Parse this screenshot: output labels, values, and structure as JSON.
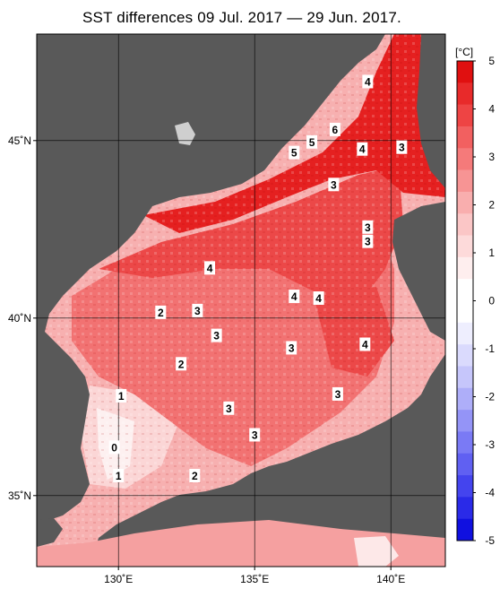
{
  "title": "SST differences 09 Jul. 2017 — 29 Jun. 2017.",
  "map": {
    "lon_range": [
      127,
      142
    ],
    "lat_range": [
      33,
      48
    ],
    "lon_ticks": [
      {
        "v": 130,
        "label": "130˚E"
      },
      {
        "v": 135,
        "label": "135˚E"
      },
      {
        "v": 140,
        "label": "140˚E"
      }
    ],
    "lat_ticks": [
      {
        "v": 45,
        "label": "45˚N"
      },
      {
        "v": 40,
        "label": "40˚N"
      },
      {
        "v": 35,
        "label": "35˚N"
      }
    ],
    "land_color": "#595959",
    "colors": {
      "positive_strong": "#e8141a",
      "positive_mid": "#f05a5a",
      "positive_light": "#f7a5a5",
      "near_zero": "#fbe3e3"
    },
    "contour_labels": [
      {
        "text": "4",
        "lon": 139.15,
        "lat": 46.65
      },
      {
        "text": "6",
        "lon": 137.95,
        "lat": 45.3
      },
      {
        "text": "5",
        "lon": 137.1,
        "lat": 44.95
      },
      {
        "text": "5",
        "lon": 136.45,
        "lat": 44.65
      },
      {
        "text": "4",
        "lon": 138.95,
        "lat": 44.75
      },
      {
        "text": "3",
        "lon": 140.4,
        "lat": 44.8
      },
      {
        "text": "3",
        "lon": 137.9,
        "lat": 43.75
      },
      {
        "text": "3",
        "lon": 139.15,
        "lat": 42.55
      },
      {
        "text": "3",
        "lon": 139.15,
        "lat": 42.15
      },
      {
        "text": "4",
        "lon": 133.35,
        "lat": 41.4
      },
      {
        "text": "4",
        "lon": 136.45,
        "lat": 40.6
      },
      {
        "text": "4",
        "lon": 137.35,
        "lat": 40.55
      },
      {
        "text": "2",
        "lon": 131.55,
        "lat": 40.15
      },
      {
        "text": "3",
        "lon": 132.9,
        "lat": 40.2
      },
      {
        "text": "3",
        "lon": 133.6,
        "lat": 39.5
      },
      {
        "text": "3",
        "lon": 136.35,
        "lat": 39.15
      },
      {
        "text": "4",
        "lon": 139.05,
        "lat": 39.25
      },
      {
        "text": "2",
        "lon": 132.3,
        "lat": 38.7
      },
      {
        "text": "1",
        "lon": 130.1,
        "lat": 37.8
      },
      {
        "text": "3",
        "lon": 134.05,
        "lat": 37.45
      },
      {
        "text": "3",
        "lon": 138.05,
        "lat": 37.85
      },
      {
        "text": "3",
        "lon": 135.0,
        "lat": 36.7
      },
      {
        "text": "0",
        "lon": 129.85,
        "lat": 36.35
      },
      {
        "text": "1",
        "lon": 130.0,
        "lat": 35.55
      },
      {
        "text": "2",
        "lon": 132.8,
        "lat": 35.55
      }
    ]
  },
  "colorbar": {
    "unit": "[°C]",
    "ticks": [
      "5",
      "4",
      "3",
      "2",
      "1",
      "0",
      "-1",
      "-2",
      "-3",
      "-4",
      "-5"
    ],
    "bins": [
      "#e01010",
      "#e82a2a",
      "#ee4444",
      "#f26060",
      "#f57a7a",
      "#f79494",
      "#f9aeae",
      "#fbc6c6",
      "#fddada",
      "#feeeee",
      "#ffffff",
      "#ffffff",
      "#eeeefe",
      "#dadafd",
      "#c6c6fb",
      "#aeaef9",
      "#9494f7",
      "#7a7af5",
      "#6060f2",
      "#4444ee",
      "#2a2ae8",
      "#1010e0"
    ]
  }
}
